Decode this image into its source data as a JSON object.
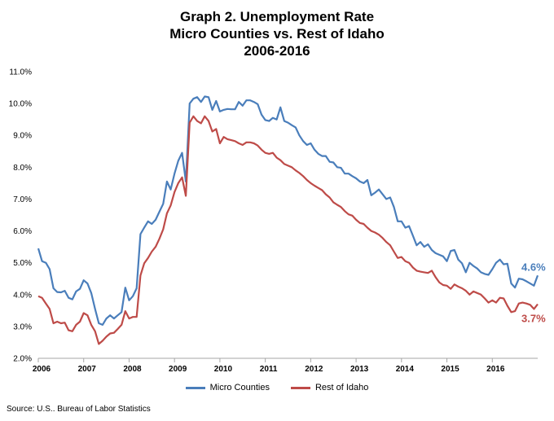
{
  "chart_data": {
    "type": "line",
    "title": [
      "Graph 2. Unemployment Rate",
      "Micro Counties vs. Rest of Idaho",
      "2006-2016"
    ],
    "y_ticks": [
      "11.0%",
      "10.0%",
      "9.0%",
      "8.0%",
      "7.0%",
      "6.0%",
      "5.0%",
      "4.0%",
      "3.0%",
      "2.0%"
    ],
    "x_ticks": [
      "2006",
      "2007",
      "2008",
      "2009",
      "2010",
      "2011",
      "2012",
      "2013",
      "2014",
      "2015",
      "2016"
    ],
    "ylim": [
      2.0,
      11.0
    ],
    "x_start": 2006,
    "months": 132,
    "grid": false,
    "legend_position": "bottom",
    "series": [
      {
        "name": "Micro Counties",
        "color": "#4a7ebb",
        "end_label": "4.6%",
        "values": [
          5.45,
          5.05,
          5.0,
          4.8,
          4.2,
          4.08,
          4.07,
          4.12,
          3.9,
          3.85,
          4.1,
          4.18,
          4.45,
          4.35,
          4.05,
          3.55,
          3.1,
          3.05,
          3.25,
          3.35,
          3.25,
          3.35,
          3.45,
          4.22,
          3.82,
          3.95,
          4.2,
          5.9,
          6.1,
          6.3,
          6.22,
          6.35,
          6.6,
          6.85,
          7.55,
          7.3,
          7.8,
          8.2,
          8.45,
          7.55,
          10.0,
          10.15,
          10.2,
          10.05,
          10.22,
          10.2,
          9.8,
          10.08,
          9.75,
          9.8,
          9.83,
          9.82,
          9.82,
          10.05,
          9.93,
          10.1,
          10.1,
          10.05,
          9.98,
          9.65,
          9.48,
          9.45,
          9.55,
          9.5,
          9.88,
          9.45,
          9.4,
          9.32,
          9.25,
          9.0,
          8.82,
          8.7,
          8.75,
          8.55,
          8.42,
          8.35,
          8.35,
          8.17,
          8.15,
          8.0,
          7.98,
          7.8,
          7.8,
          7.72,
          7.65,
          7.55,
          7.5,
          7.6,
          7.12,
          7.2,
          7.3,
          7.15,
          7.0,
          7.05,
          6.75,
          6.3,
          6.3,
          6.1,
          6.15,
          5.85,
          5.55,
          5.65,
          5.5,
          5.58,
          5.4,
          5.3,
          5.25,
          5.2,
          5.05,
          5.37,
          5.4,
          5.1,
          4.98,
          4.7,
          5.0,
          4.9,
          4.82,
          4.7,
          4.65,
          4.62,
          4.8,
          5.0,
          5.1,
          4.95,
          4.97,
          4.35,
          4.22,
          4.5,
          4.48,
          4.42,
          4.35,
          4.28,
          4.6
        ]
      },
      {
        "name": "Rest of Idaho",
        "color": "#be4b48",
        "end_label": "3.7%",
        "values": [
          3.95,
          3.9,
          3.72,
          3.55,
          3.1,
          3.15,
          3.1,
          3.12,
          2.88,
          2.85,
          3.05,
          3.15,
          3.42,
          3.35,
          3.05,
          2.85,
          2.45,
          2.55,
          2.68,
          2.78,
          2.8,
          2.92,
          3.05,
          3.48,
          3.25,
          3.3,
          3.3,
          4.6,
          4.98,
          5.15,
          5.35,
          5.5,
          5.75,
          6.05,
          6.55,
          6.8,
          7.22,
          7.5,
          7.68,
          7.1,
          9.4,
          9.6,
          9.45,
          9.38,
          9.6,
          9.45,
          9.12,
          9.2,
          8.75,
          8.95,
          8.88,
          8.85,
          8.82,
          8.75,
          8.7,
          8.78,
          8.78,
          8.75,
          8.68,
          8.55,
          8.45,
          8.42,
          8.45,
          8.3,
          8.22,
          8.1,
          8.05,
          8.0,
          7.9,
          7.82,
          7.72,
          7.6,
          7.5,
          7.42,
          7.35,
          7.28,
          7.15,
          7.05,
          6.9,
          6.82,
          6.75,
          6.62,
          6.52,
          6.48,
          6.35,
          6.25,
          6.22,
          6.1,
          6.0,
          5.95,
          5.88,
          5.78,
          5.65,
          5.55,
          5.35,
          5.15,
          5.18,
          5.05,
          5.0,
          4.85,
          4.75,
          4.72,
          4.7,
          4.68,
          4.75,
          4.55,
          4.38,
          4.3,
          4.28,
          4.18,
          4.32,
          4.25,
          4.2,
          4.12,
          4.0,
          4.1,
          4.05,
          4.0,
          3.88,
          3.75,
          3.82,
          3.75,
          3.9,
          3.88,
          3.65,
          3.45,
          3.48,
          3.72,
          3.75,
          3.72,
          3.68,
          3.55,
          3.7
        ]
      }
    ]
  },
  "source": "Source: U.S.. Bureau of Labor Statistics"
}
